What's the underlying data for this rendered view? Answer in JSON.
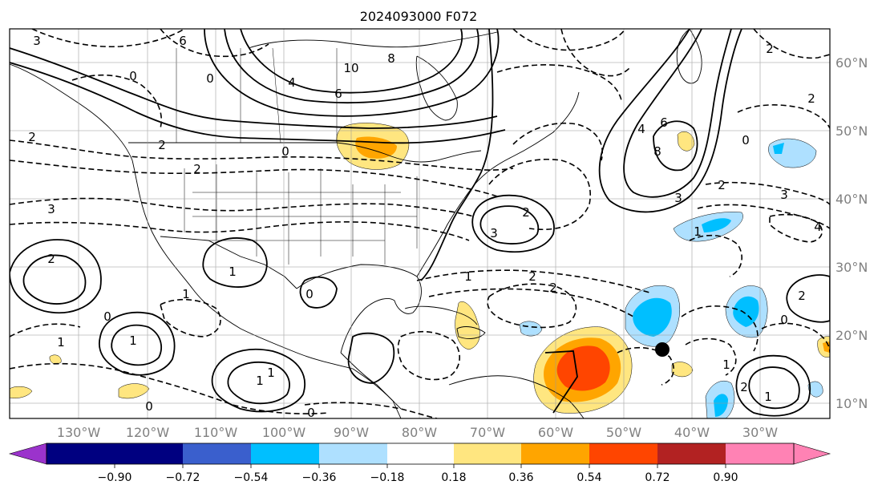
{
  "title": "2024093000 F072",
  "map": {
    "lon_ticks": [
      "130°W",
      "120°W",
      "110°W",
      "100°W",
      "90°W",
      "80°W",
      "70°W",
      "60°W",
      "50°W",
      "40°W",
      "30°W"
    ],
    "lat_ticks": [
      "60°N",
      "50°N",
      "40°N",
      "30°N",
      "20°N",
      "10°N"
    ],
    "contour_labels": [
      "3",
      "6",
      "0",
      "0",
      "10",
      "8",
      "4",
      "6",
      "2",
      "2",
      "0",
      "2",
      "3",
      "3",
      "2",
      "1",
      "0",
      "1",
      "1",
      "2",
      "2",
      "1",
      "0",
      "0",
      "1",
      "8",
      "6",
      "4",
      "2",
      "0",
      "3",
      "2",
      "1",
      "0",
      "2",
      "3",
      "4",
      "2",
      "1",
      "2",
      "1",
      "2",
      "1",
      "1",
      "0"
    ],
    "storm_marker": "black-dot"
  },
  "colorbar": {
    "tick_labels": [
      "−0.90",
      "−0.72",
      "−0.54",
      "−0.36",
      "−0.18",
      "0.18",
      "0.36",
      "0.54",
      "0.72",
      "0.90"
    ],
    "colors": {
      "extend_low": "#9b33cc",
      "neg_090_072": "#000080",
      "neg_072_054": "#3a5fcd",
      "neg_054_036": "#00bfff",
      "neg_036_018": "#aee0ff",
      "neutral": "#ffffff",
      "pos_018_036": "#ffe680",
      "pos_036_054": "#ffa500",
      "pos_054_072": "#ff4500",
      "pos_072_090": "#b22222",
      "extend_high": "#ff82b4"
    }
  }
}
